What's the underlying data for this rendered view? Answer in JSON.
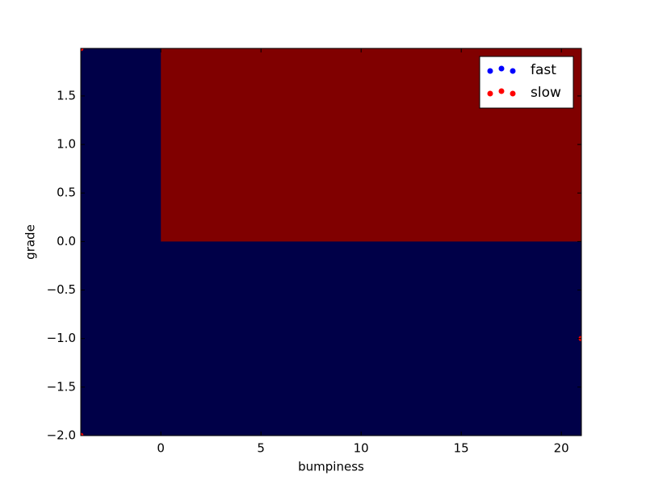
{
  "chart_data": {
    "type": "scatter",
    "xlabel": "bumpiness",
    "ylabel": "grade",
    "xlim": [
      -4,
      21
    ],
    "ylim": [
      -2.0,
      1.99
    ],
    "xticks": [
      0,
      5,
      10,
      15,
      20
    ],
    "yticks": [
      {
        "value": -2.0,
        "label": "−2.0"
      },
      {
        "value": -1.5,
        "label": "−1.5"
      },
      {
        "value": -1.0,
        "label": "−1.0"
      },
      {
        "value": -0.5,
        "label": "−0.5"
      },
      {
        "value": 0.0,
        "label": "0.0"
      },
      0.5,
      {
        "value": 1.0,
        "label": "1.0"
      },
      1.5
    ],
    "regions": [
      {
        "x": [
          -4,
          21
        ],
        "y": [
          -2.0,
          1.99
        ],
        "color": "#000048"
      },
      {
        "x": [
          0,
          21
        ],
        "y": [
          0,
          1.99
        ],
        "color": "#800000"
      }
    ],
    "series": [
      {
        "name": "fast",
        "color": "#0000ff",
        "x": [],
        "values": []
      },
      {
        "name": "slow",
        "color": "#ff0000",
        "x": [
          21,
          -4,
          -4
        ],
        "values": [
          -1.0,
          -2.0,
          1.99
        ]
      }
    ],
    "legend": "upper right"
  }
}
